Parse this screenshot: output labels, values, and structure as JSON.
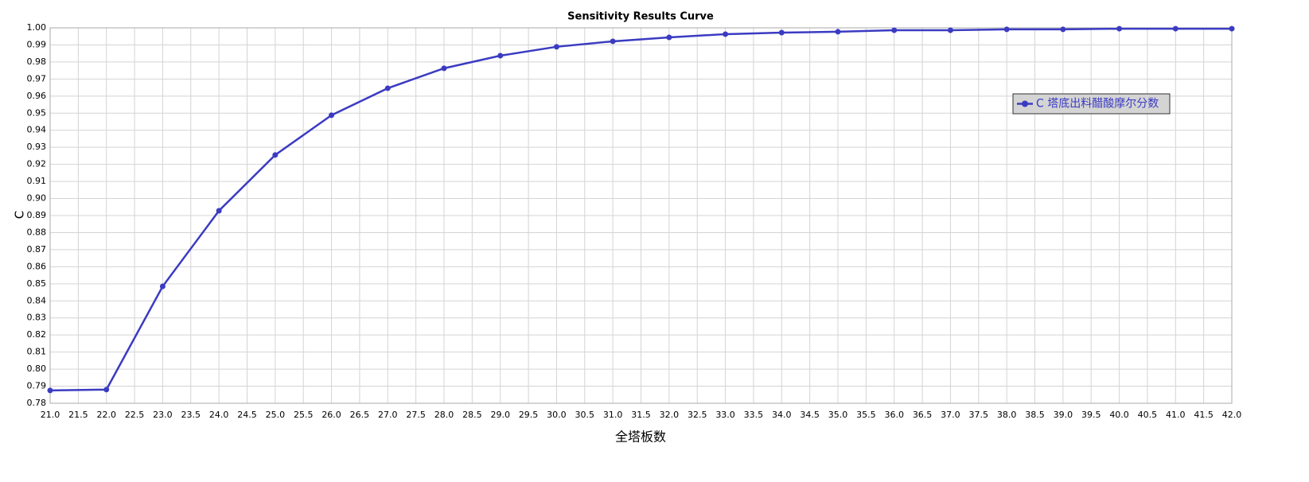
{
  "chart_data": {
    "type": "line",
    "title": "Sensitivity Results Curve",
    "xlabel": "全塔板数",
    "ylabel": "C",
    "x": [
      21,
      22,
      23,
      24,
      25,
      26,
      27,
      28,
      29,
      30,
      31,
      32,
      33,
      34,
      35,
      36,
      37,
      38,
      39,
      40,
      41,
      42
    ],
    "series": [
      {
        "name": "C 塔底出料醋酸摩尔分数",
        "color": "#3b3bc2",
        "values": [
          0.7875,
          0.788,
          0.8485,
          0.8928,
          0.9255,
          0.9488,
          0.9646,
          0.9763,
          0.9837,
          0.9889,
          0.9921,
          0.9944,
          0.9963,
          0.9972,
          0.9977,
          0.9986,
          0.9986,
          0.9991,
          0.9991,
          0.9995,
          0.9995,
          0.9995
        ]
      }
    ],
    "xlim": [
      21,
      42
    ],
    "xticks": [
      {
        "value": 21,
        "label": "21.0"
      },
      21.5,
      {
        "value": 22,
        "label": "22.0"
      },
      22.5,
      {
        "value": 23,
        "label": "23.0"
      },
      23.5,
      {
        "value": 24,
        "label": "24.0"
      },
      24.5,
      {
        "value": 25,
        "label": "25.0"
      },
      25.5,
      {
        "value": 26,
        "label": "26.0"
      },
      26.5,
      {
        "value": 27,
        "label": "27.0"
      },
      27.5,
      {
        "value": 28,
        "label": "28.0"
      },
      28.5,
      {
        "value": 29,
        "label": "29.0"
      },
      29.5,
      {
        "value": 30,
        "label": "30.0"
      },
      30.5,
      {
        "value": 31,
        "label": "31.0"
      },
      31.5,
      {
        "value": 32,
        "label": "32.0"
      },
      32.5,
      {
        "value": 33,
        "label": "33.0"
      },
      33.5,
      {
        "value": 34,
        "label": "34.0"
      },
      34.5,
      {
        "value": 35,
        "label": "35.0"
      },
      35.5,
      {
        "value": 36,
        "label": "36.0"
      },
      36.5,
      {
        "value": 37,
        "label": "37.0"
      },
      37.5,
      {
        "value": 38,
        "label": "38.0"
      },
      38.5,
      {
        "value": 39,
        "label": "39.0"
      },
      39.5,
      {
        "value": 40,
        "label": "40.0"
      },
      40.5,
      {
        "value": 41,
        "label": "41.0"
      },
      41.5,
      {
        "value": 42,
        "label": "42.0"
      }
    ],
    "ylim": [
      0.78,
      1.0
    ],
    "yticks": [
      0.78,
      0.79,
      {
        "value": 0.8,
        "label": "0.80"
      },
      0.81,
      0.82,
      0.83,
      0.84,
      0.85,
      0.86,
      0.87,
      0.88,
      0.89,
      {
        "value": 0.9,
        "label": "0.90"
      },
      0.91,
      0.92,
      0.93,
      0.94,
      0.95,
      0.96,
      0.97,
      0.98,
      0.99,
      {
        "value": 1.0,
        "label": "1.00"
      }
    ],
    "grid": true,
    "legend": "upper right"
  }
}
